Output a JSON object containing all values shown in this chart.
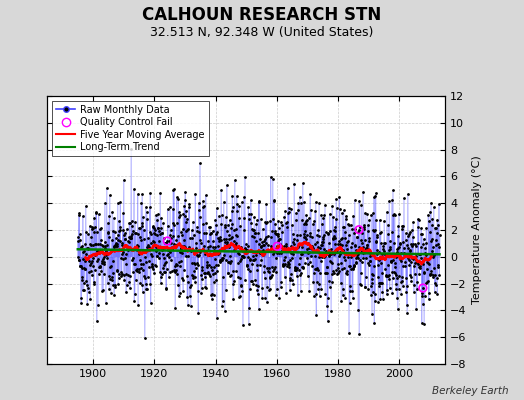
{
  "title": "CALHOUN RESEARCH STN",
  "subtitle": "32.513 N, 92.348 W (United States)",
  "ylabel": "Temperature Anomaly (°C)",
  "credit": "Berkeley Earth",
  "ylim": [
    -8,
    12
  ],
  "yticks": [
    -8,
    -6,
    -4,
    -2,
    0,
    2,
    4,
    6,
    8,
    10,
    12
  ],
  "xlim": [
    1885,
    2015
  ],
  "xticks": [
    1900,
    1920,
    1940,
    1960,
    1980,
    2000
  ],
  "year_start": 1895,
  "year_end": 2013,
  "n_months": 1416,
  "bg_color": "#d8d8d8",
  "plot_bg": "#ffffff",
  "raw_line_color": "#4040ff",
  "raw_line_light": "#8888ff",
  "raw_marker_color": "black",
  "moving_avg_color": "red",
  "trend_color": "green",
  "qc_color": "magenta",
  "seed": 42,
  "title_fontsize": 12,
  "subtitle_fontsize": 9,
  "tick_fontsize": 8,
  "ylabel_fontsize": 8
}
